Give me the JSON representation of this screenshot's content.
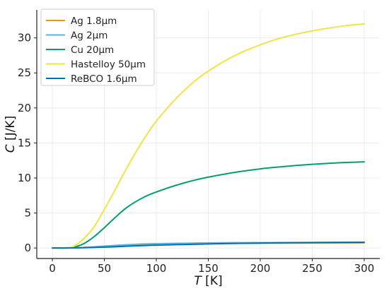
{
  "chart_data": {
    "type": "line",
    "xlabel": {
      "var": "T",
      "unit": " [K]"
    },
    "ylabel": {
      "var": "C",
      "unit": " [J/K]"
    },
    "xlim": [
      -15,
      315
    ],
    "ylim": [
      -1.5,
      34
    ],
    "xticks": [
      0,
      50,
      100,
      150,
      200,
      250,
      300
    ],
    "yticks": [
      0,
      5,
      10,
      15,
      20,
      25,
      30
    ],
    "grid": true,
    "legend_position": "top-left",
    "series": [
      {
        "name": "Ag 1.8μm",
        "color": "#E69F00",
        "x": [
          0,
          10,
          20,
          30,
          40,
          50,
          60,
          80,
          100,
          150,
          200,
          250,
          300
        ],
        "y": [
          0,
          0.001,
          0.02,
          0.07,
          0.15,
          0.25,
          0.34,
          0.48,
          0.56,
          0.66,
          0.7,
          0.72,
          0.73
        ]
      },
      {
        "name": "Ag 2μm",
        "color": "#56B4E9",
        "x": [
          0,
          10,
          20,
          30,
          40,
          50,
          60,
          80,
          100,
          150,
          200,
          250,
          300
        ],
        "y": [
          0,
          0.001,
          0.02,
          0.08,
          0.17,
          0.28,
          0.37,
          0.53,
          0.62,
          0.73,
          0.77,
          0.79,
          0.81
        ]
      },
      {
        "name": "Cu 20μm",
        "color": "#009E73",
        "x": [
          0,
          10,
          20,
          30,
          40,
          50,
          60,
          70,
          80,
          90,
          100,
          120,
          140,
          160,
          180,
          200,
          220,
          250,
          280,
          300
        ],
        "y": [
          0,
          0.002,
          0.1,
          0.6,
          1.6,
          2.9,
          4.3,
          5.6,
          6.6,
          7.4,
          8.0,
          9.0,
          9.8,
          10.4,
          10.9,
          11.3,
          11.6,
          11.95,
          12.2,
          12.3
        ]
      },
      {
        "name": "Hastelloy 50μm",
        "color": "#F0E442",
        "x": [
          0,
          10,
          20,
          30,
          40,
          50,
          60,
          70,
          80,
          90,
          100,
          120,
          140,
          160,
          180,
          200,
          220,
          250,
          280,
          300
        ],
        "y": [
          0,
          0.005,
          0.2,
          1.3,
          3.0,
          5.5,
          8.2,
          11.0,
          13.6,
          16.0,
          18.1,
          21.5,
          24.2,
          26.2,
          27.8,
          29.0,
          30.0,
          31.0,
          31.7,
          32.0
        ]
      },
      {
        "name": "ReBCO 1.6μm",
        "color": "#0072B2",
        "x": [
          0,
          10,
          20,
          30,
          40,
          50,
          60,
          80,
          100,
          150,
          200,
          250,
          300
        ],
        "y": [
          0,
          0.001,
          0.01,
          0.04,
          0.08,
          0.13,
          0.18,
          0.3,
          0.4,
          0.58,
          0.7,
          0.77,
          0.82
        ]
      }
    ]
  }
}
